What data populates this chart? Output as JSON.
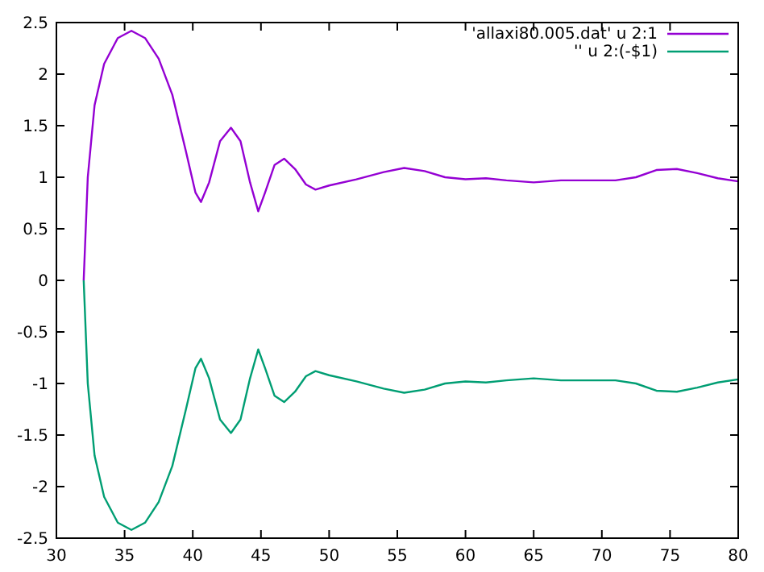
{
  "chart_data": {
    "type": "line",
    "legend": "top right",
    "grid": false,
    "xlim": [
      30,
      80
    ],
    "ylim": [
      -2.5,
      2.5
    ],
    "xticks": [
      30,
      35,
      40,
      45,
      50,
      55,
      60,
      65,
      70,
      75,
      80
    ],
    "yticks": [
      -2.5,
      -2,
      -1.5,
      -1,
      -0.5,
      0,
      0.5,
      1,
      1.5,
      2,
      2.5
    ],
    "x": [
      32,
      32.3,
      32.8,
      33.5,
      34.5,
      35.5,
      36.5,
      37.5,
      38.5,
      39.5,
      40.2,
      40.6,
      41.2,
      42,
      42.8,
      43.5,
      44.2,
      44.8,
      45.3,
      46,
      46.7,
      47.5,
      48.3,
      49,
      50,
      52,
      54,
      55.5,
      57,
      58.5,
      60,
      61.5,
      63,
      65,
      67,
      69,
      71,
      72.5,
      74,
      75.5,
      77,
      78.5,
      80
    ],
    "series": [
      {
        "name": "'allaxi80.005.dat' u 2:1",
        "color": "#9400d3",
        "values": [
          0,
          1.0,
          1.7,
          2.1,
          2.35,
          2.42,
          2.35,
          2.15,
          1.8,
          1.25,
          0.85,
          0.76,
          0.95,
          1.35,
          1.48,
          1.35,
          0.95,
          0.67,
          0.85,
          1.12,
          1.18,
          1.08,
          0.93,
          0.88,
          0.92,
          0.98,
          1.05,
          1.09,
          1.06,
          1.0,
          0.98,
          0.99,
          0.97,
          0.95,
          0.97,
          0.97,
          0.97,
          1.0,
          1.07,
          1.08,
          1.04,
          0.99,
          0.96
        ]
      },
      {
        "name": "'' u 2:(-$1)",
        "color": "#009e73",
        "values": [
          0,
          -1.0,
          -1.7,
          -2.1,
          -2.35,
          -2.42,
          -2.35,
          -2.15,
          -1.8,
          -1.25,
          -0.85,
          -0.76,
          -0.95,
          -1.35,
          -1.48,
          -1.35,
          -0.95,
          -0.67,
          -0.85,
          -1.12,
          -1.18,
          -1.08,
          -0.93,
          -0.88,
          -0.92,
          -0.98,
          -1.05,
          -1.09,
          -1.06,
          -1.0,
          -0.98,
          -0.99,
          -0.97,
          -0.95,
          -0.97,
          -0.97,
          -0.97,
          -1.0,
          -1.07,
          -1.08,
          -1.04,
          -0.99,
          -0.96
        ]
      }
    ]
  }
}
